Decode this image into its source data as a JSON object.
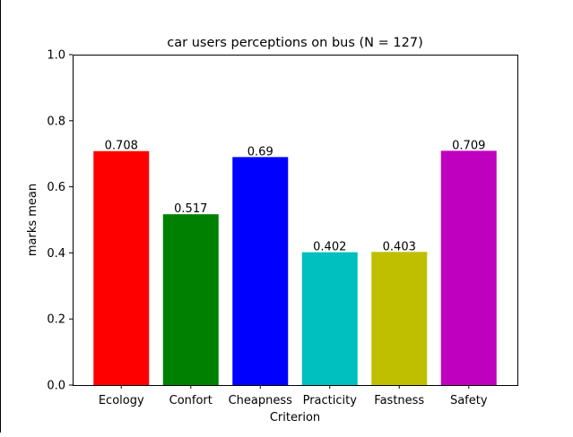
{
  "chart_data": {
    "type": "bar",
    "title": "car users perceptions on bus (N = 127)",
    "xlabel": "Criterion",
    "ylabel": "marks mean",
    "ylim": [
      0,
      1.0
    ],
    "yticks": [
      0.0,
      0.2,
      0.4,
      0.6,
      0.8,
      1.0
    ],
    "ytick_labels": [
      "0.0",
      "0.2",
      "0.4",
      "0.6",
      "0.8",
      "1.0"
    ],
    "categories": [
      "Ecology",
      "Confort",
      "Cheapness",
      "Practicity",
      "Fastness",
      "Safety"
    ],
    "values": [
      0.708,
      0.517,
      0.69,
      0.402,
      0.403,
      0.709
    ],
    "value_labels": [
      "0.708",
      "0.517",
      "0.69",
      "0.402",
      "0.403",
      "0.709"
    ],
    "colors": [
      "#ff0000",
      "#008000",
      "#0000ff",
      "#00bfbf",
      "#bfbf00",
      "#bf00bf"
    ],
    "grid": false,
    "legend": "none"
  }
}
